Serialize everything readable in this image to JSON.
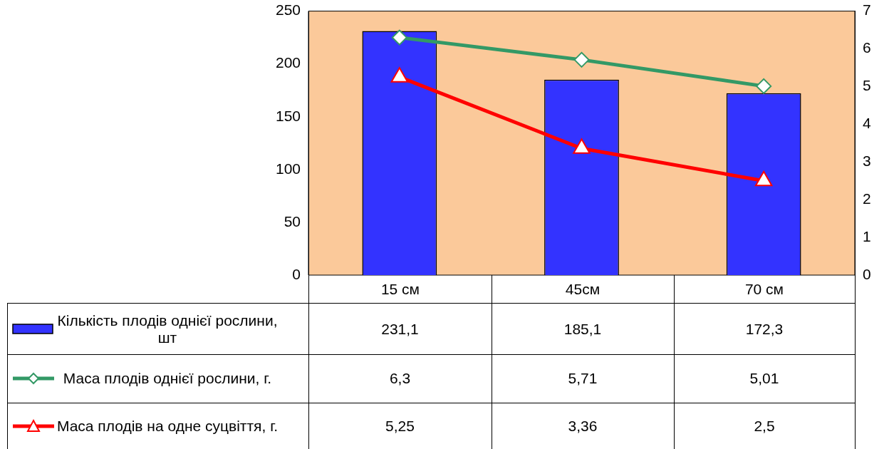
{
  "chart_data": {
    "type": "bar",
    "categories": [
      "15 см",
      "45см",
      "70 см"
    ],
    "series": [
      {
        "name": "Кількість плодів    однієї рослини, шт",
        "color": "#3333ff",
        "values": [
          231.1,
          185.1,
          172.3
        ],
        "value_labels": [
          "231,1",
          "185,1",
          "172,3"
        ]
      },
      {
        "type": "line",
        "name": "Маса плодів однієї рослини, г.",
        "color": "#339966",
        "axis": "y2",
        "marker": "diamond",
        "values": [
          6.3,
          5.71,
          5.01
        ],
        "value_labels": [
          "6,3",
          "5,71",
          "5,01"
        ]
      },
      {
        "type": "line",
        "name": "Маса плодів на одне суцвіття, г.",
        "color": "#ff0000",
        "axis": "y2",
        "marker": "triangle",
        "values": [
          5.25,
          3.36,
          2.5
        ],
        "value_labels": [
          "5,25",
          "3,36",
          "2,5"
        ]
      }
    ],
    "ylim": [
      0,
      250
    ],
    "yticks": [
      0,
      50,
      100,
      150,
      200,
      250
    ],
    "y2lim": [
      0,
      7
    ],
    "y2ticks": [
      0,
      1,
      2,
      3,
      4,
      5,
      6,
      7
    ],
    "grid": false,
    "legend": "bottom"
  }
}
